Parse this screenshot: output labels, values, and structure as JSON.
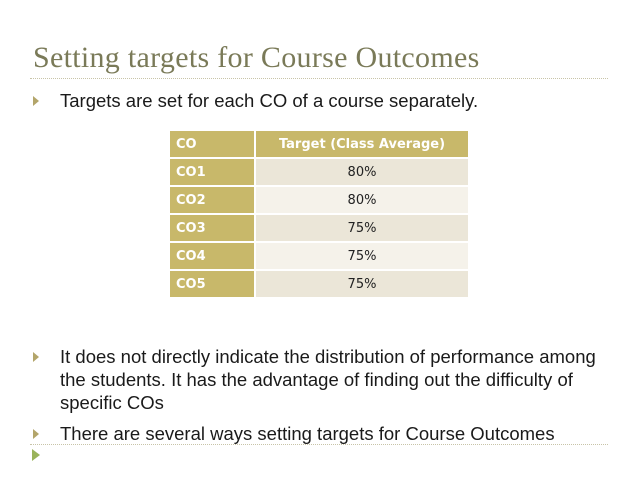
{
  "slide": {
    "title": "Setting targets for Course Outcomes",
    "bullets": [
      "Targets are set for each CO of a course separately.",
      "It does not directly indicate the distribution of performance among the students.  It has the advantage of finding out the difficulty of specific COs",
      "There are several ways setting targets for Course Outcomes"
    ],
    "table": {
      "headers": [
        "CO",
        "Target (Class Average)"
      ],
      "rows": [
        [
          "CO1",
          "80%"
        ],
        [
          "CO2",
          "80%"
        ],
        [
          "CO3",
          "75%"
        ],
        [
          "CO4",
          "75%"
        ],
        [
          "CO5",
          "75%"
        ]
      ]
    },
    "colors": {
      "title": "#7a7a58",
      "accent": "#c8b86a",
      "bullet": "#b3a56a"
    }
  }
}
